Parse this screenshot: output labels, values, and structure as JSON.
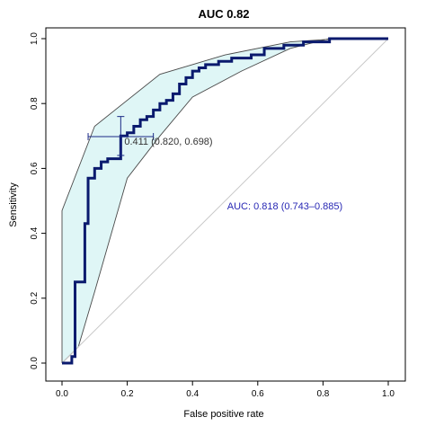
{
  "chart_data": {
    "type": "line",
    "title": "AUC 0.82",
    "xlabel": "False positive rate",
    "ylabel": "Sensitivity",
    "xlim": [
      0,
      1
    ],
    "ylim": [
      0,
      1
    ],
    "x_ticks": [
      "0.0",
      "0.2",
      "0.4",
      "0.6",
      "0.8",
      "1.0"
    ],
    "y_ticks": [
      "0.0",
      "0.2",
      "0.4",
      "0.6",
      "0.8",
      "1.0"
    ],
    "grid": false,
    "reference_line": {
      "x": [
        0,
        1
      ],
      "y": [
        0,
        1
      ],
      "color": "#c8c8c8"
    },
    "roc_curve": {
      "color": "#0a1a6e",
      "x": [
        0,
        0.03,
        0.03,
        0.04,
        0.04,
        0.07,
        0.07,
        0.08,
        0.08,
        0.1,
        0.1,
        0.12,
        0.12,
        0.14,
        0.14,
        0.18,
        0.18,
        0.2,
        0.2,
        0.22,
        0.22,
        0.24,
        0.24,
        0.26,
        0.26,
        0.28,
        0.28,
        0.3,
        0.3,
        0.32,
        0.32,
        0.34,
        0.34,
        0.36,
        0.36,
        0.38,
        0.38,
        0.4,
        0.4,
        0.42,
        0.42,
        0.44,
        0.44,
        0.48,
        0.48,
        0.52,
        0.52,
        0.58,
        0.58,
        0.62,
        0.62,
        0.68,
        0.68,
        0.74,
        0.74,
        0.82,
        0.82,
        1.0
      ],
      "y": [
        0,
        0,
        0.02,
        0.02,
        0.25,
        0.25,
        0.43,
        0.43,
        0.57,
        0.57,
        0.6,
        0.6,
        0.62,
        0.62,
        0.63,
        0.63,
        0.7,
        0.7,
        0.71,
        0.71,
        0.73,
        0.73,
        0.75,
        0.75,
        0.76,
        0.76,
        0.78,
        0.78,
        0.8,
        0.8,
        0.81,
        0.81,
        0.83,
        0.83,
        0.86,
        0.86,
        0.88,
        0.88,
        0.9,
        0.9,
        0.91,
        0.91,
        0.92,
        0.92,
        0.93,
        0.93,
        0.94,
        0.94,
        0.95,
        0.95,
        0.97,
        0.97,
        0.98,
        0.98,
        0.99,
        0.99,
        1.0,
        1.0
      ]
    },
    "confidence_band": {
      "fill_color": "#dff6f6",
      "edge_color": "#4a4a4a",
      "upper_x": [
        0,
        0,
        0.1,
        0.3,
        0.5,
        0.7,
        0.85,
        1.0
      ],
      "upper_y": [
        0,
        0.47,
        0.73,
        0.89,
        0.95,
        0.99,
        1.0,
        1.0
      ],
      "lower_x": [
        1.0,
        0.82,
        0.7,
        0.55,
        0.4,
        0.3,
        0.2,
        0.1,
        0.05,
        0.0
      ],
      "lower_y": [
        1.0,
        1.0,
        0.97,
        0.9,
        0.82,
        0.7,
        0.57,
        0.22,
        0.05,
        0.0
      ]
    },
    "threshold_point": {
      "x": 0.18,
      "y": 0.698,
      "x_err": [
        0.08,
        0.28
      ],
      "y_err": [
        0.64,
        0.76
      ],
      "label": "0.411 (0.820, 0.698)",
      "color": "#1b2a86"
    },
    "auc_annotation": {
      "text": "AUC: 0.818 (0.743–0.885)",
      "color": "#2828b4"
    }
  }
}
